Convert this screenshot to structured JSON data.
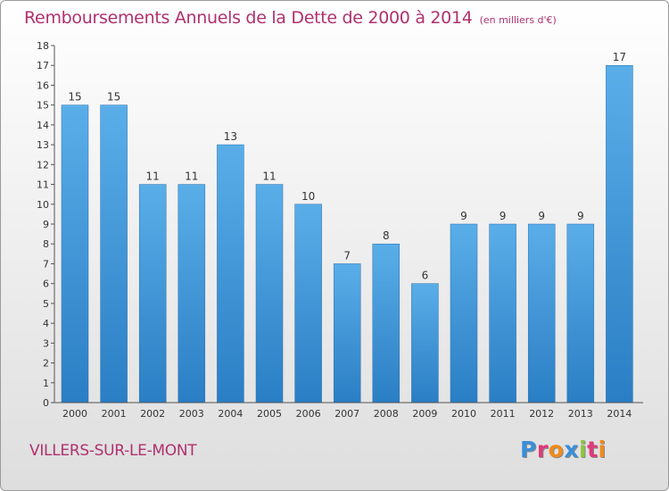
{
  "header": {
    "title": "Remboursements Annuels de la Dette de 2000 à 2014",
    "subtitle": "(en milliers d'€)"
  },
  "footer": {
    "commune": "VILLERS-SUR-LE-MONT",
    "logo_text": "Proxiti",
    "logo_colors": [
      "#3a8fd9",
      "#e03a7a",
      "#f08a1c",
      "#3a8fd9",
      "#8cc63f",
      "#e03a7a",
      "#f08a1c"
    ]
  },
  "colors": {
    "bar_top": "#5aaee8",
    "bar_bottom": "#2a7ec4",
    "title": "#b0306f"
  },
  "chart_data": {
    "type": "bar",
    "title": "Remboursements Annuels de la Dette de 2000 à 2014",
    "subtitle": "(en milliers d'€)",
    "xlabel": "",
    "ylabel": "",
    "categories": [
      "2000",
      "2001",
      "2002",
      "2003",
      "2004",
      "2005",
      "2006",
      "2007",
      "2008",
      "2009",
      "2010",
      "2011",
      "2012",
      "2013",
      "2014"
    ],
    "values": [
      15,
      15,
      11,
      11,
      13,
      11,
      10,
      7,
      8,
      6,
      9,
      9,
      9,
      9,
      17
    ],
    "ylim": [
      0,
      18
    ],
    "yticks": [
      "0",
      "1",
      "2",
      "3",
      "4",
      "5",
      "6",
      "7",
      "8",
      "9",
      "10",
      "11",
      "12",
      "13",
      "14",
      "15",
      "16",
      "17",
      "18"
    ],
    "grid": false,
    "legend": "none"
  }
}
